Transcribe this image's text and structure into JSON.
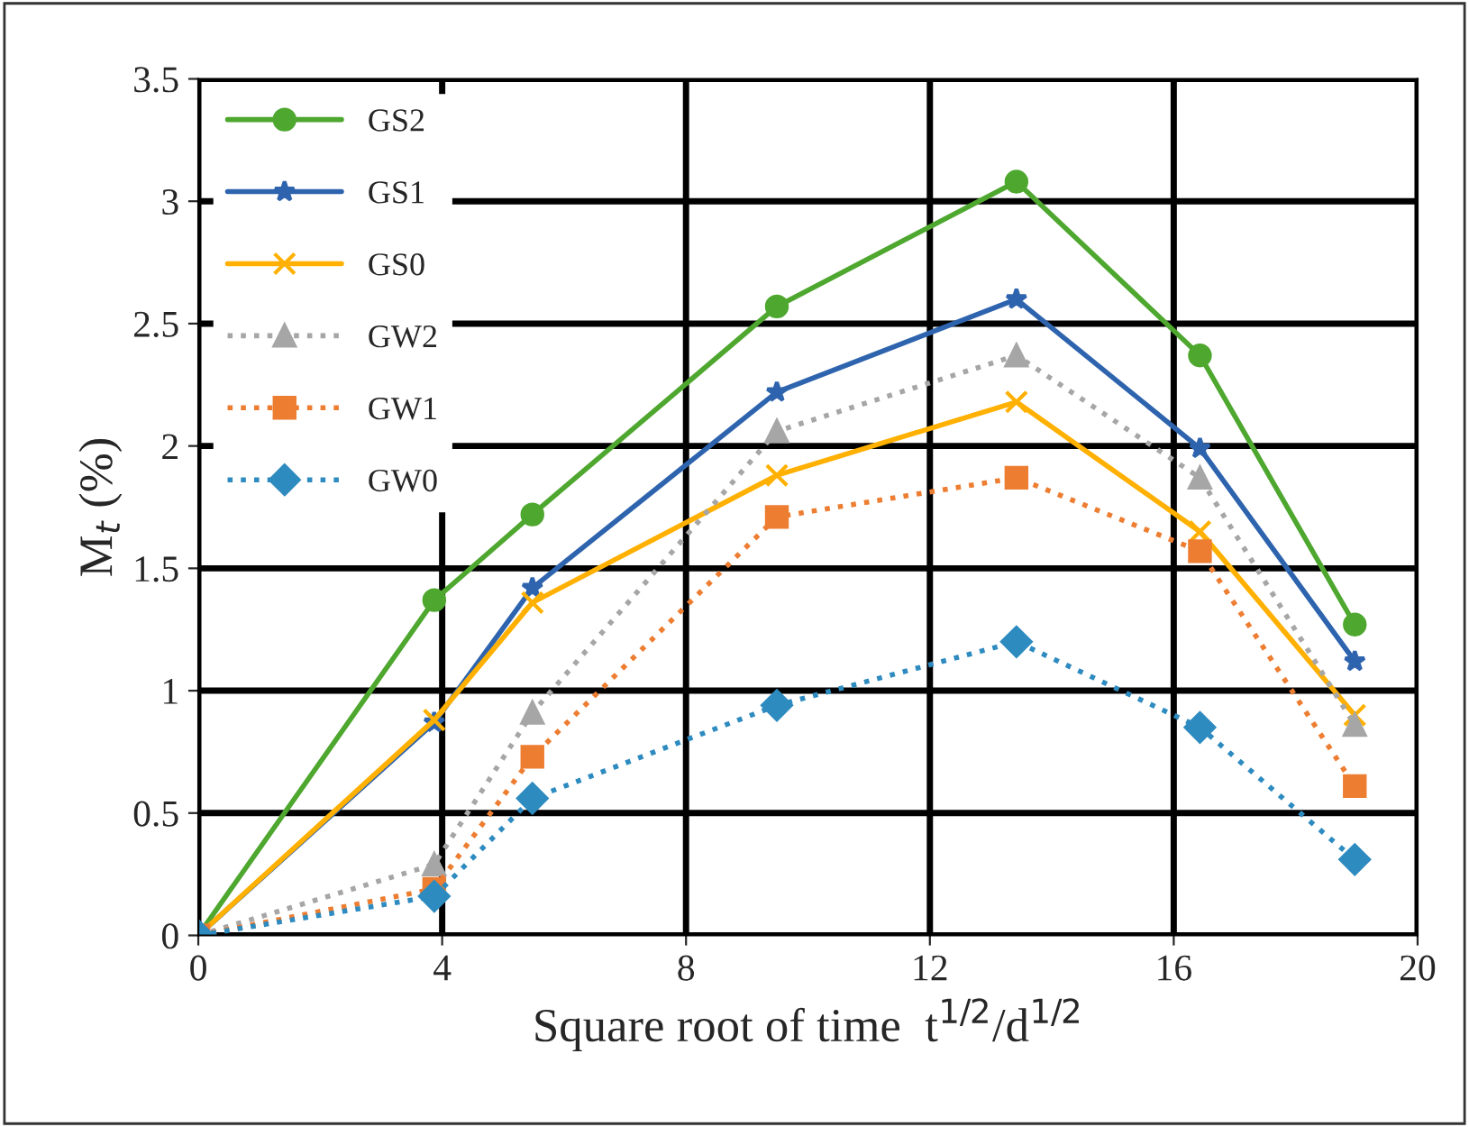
{
  "chart_data": {
    "type": "line",
    "xlabel": "Square root of time  t$^{1/2}$/d$^{1/2}$",
    "ylabel": "M$_{t}$ (%)",
    "x": [
      0,
      3.87,
      5.48,
      9.49,
      13.42,
      16.43,
      18.97
    ],
    "xlim": [
      0,
      20
    ],
    "xticks": [
      0,
      4,
      8,
      12,
      16,
      20
    ],
    "ylim": [
      0,
      3.5
    ],
    "yticks": [
      0,
      0.5,
      1,
      1.5,
      2,
      2.5,
      3,
      3.5
    ],
    "grid": true,
    "legend": "top left",
    "series": [
      {
        "name": "GS2",
        "color": "#4ea72e",
        "marker": "circle",
        "line_style": "solid",
        "values": [
          0,
          1.37,
          1.72,
          2.57,
          3.08,
          2.37,
          1.27
        ]
      },
      {
        "name": "GS1",
        "color": "#2e64ae",
        "marker": "star",
        "line_style": "solid",
        "values": [
          0,
          0.87,
          1.42,
          2.22,
          2.6,
          1.99,
          1.12
        ]
      },
      {
        "name": "GS0",
        "color": "#ffb000",
        "marker": "cross",
        "line_style": "solid",
        "values": [
          0,
          0.88,
          1.36,
          1.88,
          2.18,
          1.65,
          0.9
        ]
      },
      {
        "name": "GW2",
        "color": "#a6a6a6",
        "marker": "triangle",
        "line_style": "dotted",
        "values": [
          0,
          0.29,
          0.91,
          2.06,
          2.37,
          1.87,
          0.86
        ]
      },
      {
        "name": "GW1",
        "color": "#ed7d31",
        "marker": "square",
        "line_style": "dotted",
        "values": [
          0,
          0.19,
          0.73,
          1.71,
          1.87,
          1.57,
          0.61
        ]
      },
      {
        "name": "GW0",
        "color": "#2e8bc0",
        "marker": "diamond",
        "line_style": "dotted",
        "values": [
          0,
          0.16,
          0.56,
          0.94,
          1.2,
          0.85,
          0.31
        ]
      }
    ]
  }
}
